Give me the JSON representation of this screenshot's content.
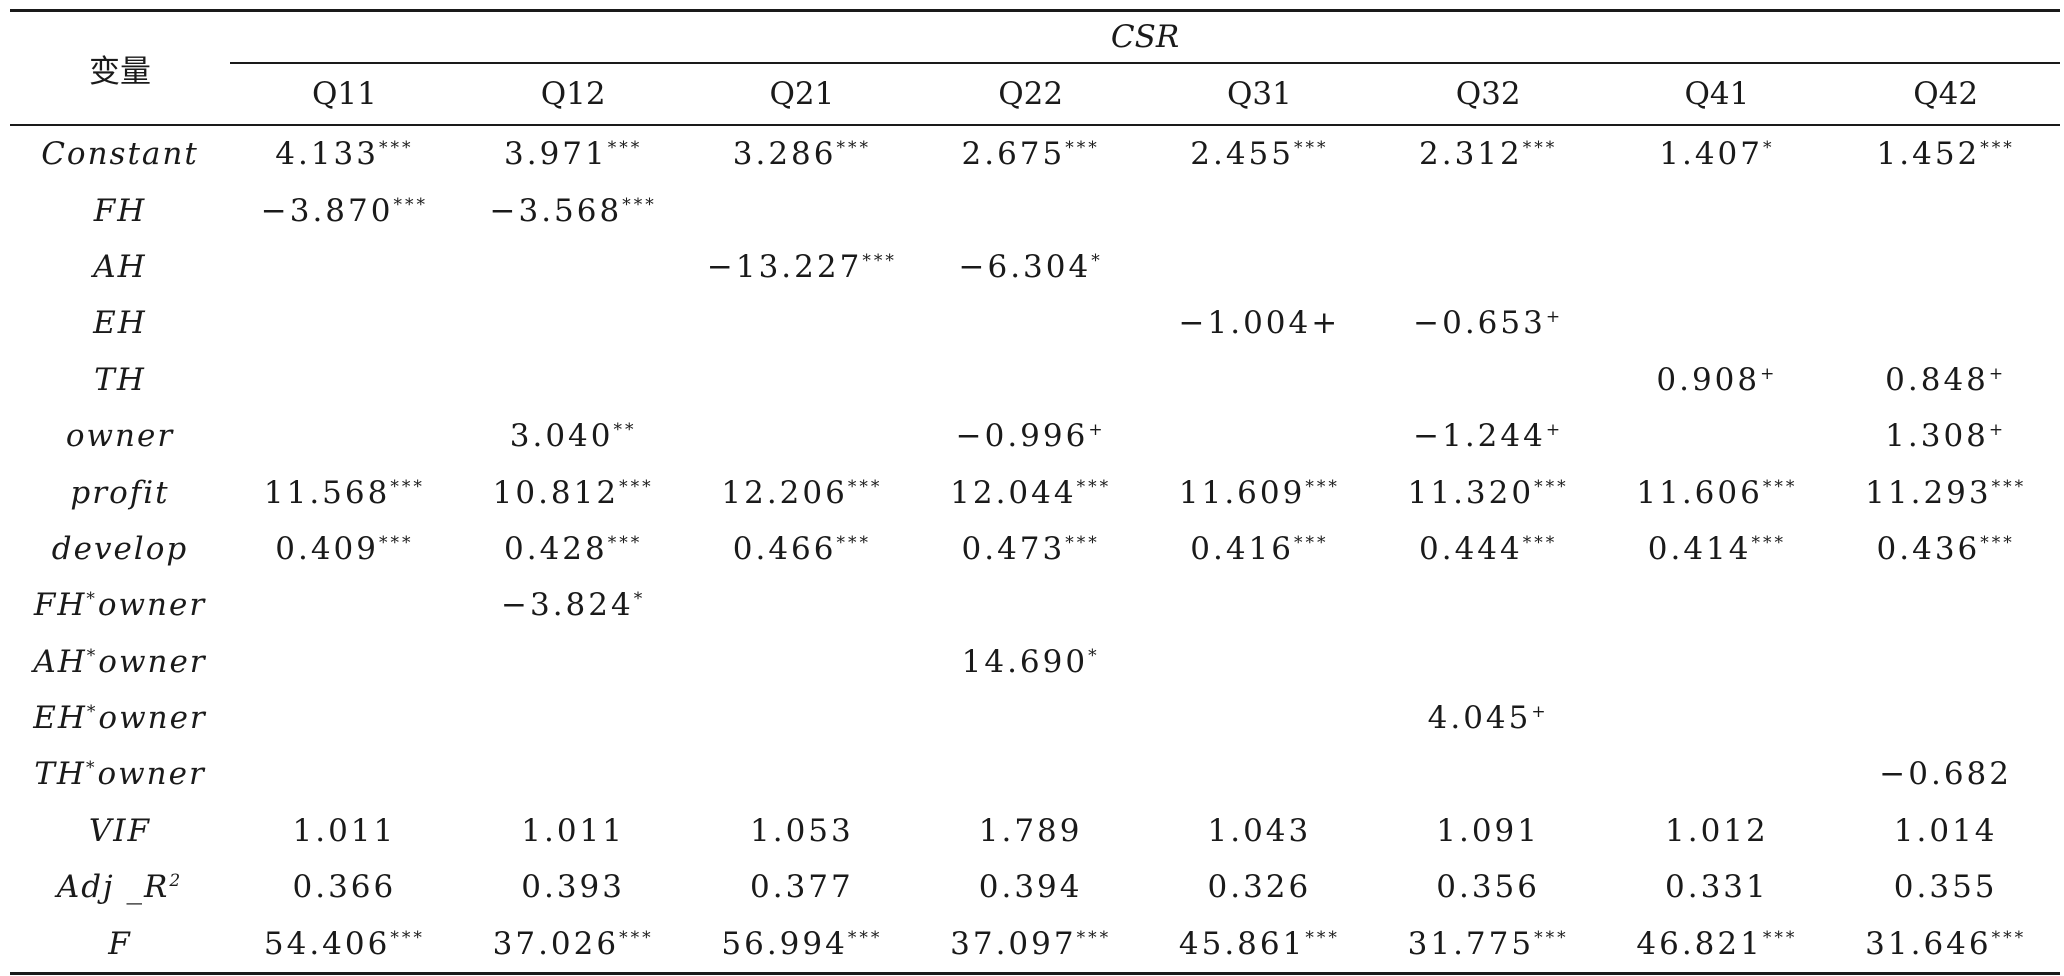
{
  "table": {
    "header": {
      "var_label": "变量",
      "group_label": "CSR",
      "columns": [
        "Q11",
        "Q12",
        "Q21",
        "Q22",
        "Q31",
        "Q32",
        "Q41",
        "Q42"
      ]
    },
    "rows": [
      {
        "var": "Constant",
        "var_sup": "",
        "var_tail": "",
        "cells": [
          [
            "4.133",
            "***"
          ],
          [
            "3.971",
            "***"
          ],
          [
            "3.286",
            "***"
          ],
          [
            "2.675",
            "***"
          ],
          [
            "2.455",
            "***"
          ],
          [
            "2.312",
            "***"
          ],
          [
            "1.407",
            "*"
          ],
          [
            "1.452",
            "***"
          ]
        ]
      },
      {
        "var": "FH",
        "var_sup": "",
        "var_tail": "",
        "cells": [
          [
            "−3.870",
            "***"
          ],
          [
            "−3.568",
            "***"
          ],
          [
            "",
            ""
          ],
          [
            "",
            ""
          ],
          [
            "",
            ""
          ],
          [
            "",
            ""
          ],
          [
            "",
            ""
          ],
          [
            "",
            ""
          ]
        ]
      },
      {
        "var": "AH",
        "var_sup": "",
        "var_tail": "",
        "cells": [
          [
            "",
            ""
          ],
          [
            "",
            ""
          ],
          [
            "−13.227",
            "***"
          ],
          [
            "−6.304",
            "*"
          ],
          [
            "",
            ""
          ],
          [
            "",
            ""
          ],
          [
            "",
            ""
          ],
          [
            "",
            ""
          ]
        ]
      },
      {
        "var": "EH",
        "var_sup": "",
        "var_tail": "",
        "cells": [
          [
            "",
            ""
          ],
          [
            "",
            ""
          ],
          [
            "",
            ""
          ],
          [
            "",
            ""
          ],
          [
            "−1.004+",
            ""
          ],
          [
            "−0.653",
            "+"
          ],
          [
            "",
            ""
          ],
          [
            "",
            ""
          ]
        ]
      },
      {
        "var": "TH",
        "var_sup": "",
        "var_tail": "",
        "cells": [
          [
            "",
            ""
          ],
          [
            "",
            ""
          ],
          [
            "",
            ""
          ],
          [
            "",
            ""
          ],
          [
            "",
            ""
          ],
          [
            "",
            ""
          ],
          [
            "0.908",
            "+"
          ],
          [
            "0.848",
            "+"
          ]
        ]
      },
      {
        "var": "owner",
        "var_sup": "",
        "var_tail": "",
        "cells": [
          [
            "",
            ""
          ],
          [
            "3.040",
            "**"
          ],
          [
            "",
            ""
          ],
          [
            "−0.996",
            "+"
          ],
          [
            "",
            ""
          ],
          [
            "−1.244",
            "+"
          ],
          [
            "",
            ""
          ],
          [
            "1.308",
            "+"
          ]
        ]
      },
      {
        "var": "profit",
        "var_sup": "",
        "var_tail": "",
        "cells": [
          [
            "11.568",
            "***"
          ],
          [
            "10.812",
            "***"
          ],
          [
            "12.206",
            "***"
          ],
          [
            "12.044",
            "***"
          ],
          [
            "11.609",
            "***"
          ],
          [
            "11.320",
            "***"
          ],
          [
            "11.606",
            "***"
          ],
          [
            "11.293",
            "***"
          ]
        ]
      },
      {
        "var": "develop",
        "var_sup": "",
        "var_tail": "",
        "cells": [
          [
            "0.409",
            "***"
          ],
          [
            "0.428",
            "***"
          ],
          [
            "0.466",
            "***"
          ],
          [
            "0.473",
            "***"
          ],
          [
            "0.416",
            "***"
          ],
          [
            "0.444",
            "***"
          ],
          [
            "0.414",
            "***"
          ],
          [
            "0.436",
            "***"
          ]
        ]
      },
      {
        "var": "FH",
        "var_sup": "*",
        "var_tail": "owner",
        "cells": [
          [
            "",
            ""
          ],
          [
            "−3.824",
            "*"
          ],
          [
            "",
            ""
          ],
          [
            "",
            ""
          ],
          [
            "",
            ""
          ],
          [
            "",
            ""
          ],
          [
            "",
            ""
          ],
          [
            "",
            ""
          ]
        ]
      },
      {
        "var": "AH",
        "var_sup": "*",
        "var_tail": "owner",
        "cells": [
          [
            "",
            ""
          ],
          [
            "",
            ""
          ],
          [
            "",
            ""
          ],
          [
            "14.690",
            "*"
          ],
          [
            "",
            ""
          ],
          [
            "",
            ""
          ],
          [
            "",
            ""
          ],
          [
            "",
            ""
          ]
        ]
      },
      {
        "var": "EH",
        "var_sup": "*",
        "var_tail": "owner",
        "cells": [
          [
            "",
            ""
          ],
          [
            "",
            ""
          ],
          [
            "",
            ""
          ],
          [
            "",
            ""
          ],
          [
            "",
            ""
          ],
          [
            "4.045",
            "+"
          ],
          [
            "",
            ""
          ],
          [
            "",
            ""
          ]
        ]
      },
      {
        "var": "TH",
        "var_sup": "*",
        "var_tail": "owner",
        "cells": [
          [
            "",
            ""
          ],
          [
            "",
            ""
          ],
          [
            "",
            ""
          ],
          [
            "",
            ""
          ],
          [
            "",
            ""
          ],
          [
            "",
            ""
          ],
          [
            "",
            ""
          ],
          [
            "−0.682",
            ""
          ]
        ]
      },
      {
        "var": "VIF",
        "var_sup": "",
        "var_tail": "",
        "cells": [
          [
            "1.011",
            ""
          ],
          [
            "1.011",
            ""
          ],
          [
            "1.053",
            ""
          ],
          [
            "1.789",
            ""
          ],
          [
            "1.043",
            ""
          ],
          [
            "1.091",
            ""
          ],
          [
            "1.012",
            ""
          ],
          [
            "1.014",
            ""
          ]
        ]
      },
      {
        "var": "Adj _R",
        "var_sup": "2",
        "var_tail": "",
        "cells": [
          [
            "0.366",
            ""
          ],
          [
            "0.393",
            ""
          ],
          [
            "0.377",
            ""
          ],
          [
            "0.394",
            ""
          ],
          [
            "0.326",
            ""
          ],
          [
            "0.356",
            ""
          ],
          [
            "0.331",
            ""
          ],
          [
            "0.355",
            ""
          ]
        ]
      },
      {
        "var": "F",
        "var_sup": "",
        "var_tail": "",
        "cells": [
          [
            "54.406",
            "***"
          ],
          [
            "37.026",
            "***"
          ],
          [
            "56.994",
            "***"
          ],
          [
            "37.097",
            "***"
          ],
          [
            "45.861",
            "***"
          ],
          [
            "31.775",
            "***"
          ],
          [
            "46.821",
            "***"
          ],
          [
            "31.646",
            "***"
          ]
        ]
      }
    ]
  }
}
